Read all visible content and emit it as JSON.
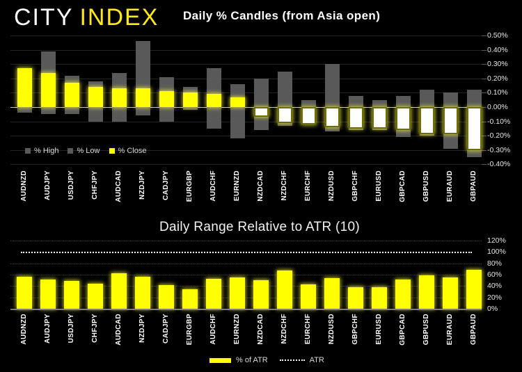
{
  "logo": {
    "text_white": "CITY",
    "text_yellow": "INDEX"
  },
  "colors": {
    "background": "#000000",
    "bar_yellow": "#ffff00",
    "bar_gray": "#595959",
    "negative_close_fill": "#ffffff",
    "logo_yellow": "#ffe81a",
    "axis_text": "#e6e6e6"
  },
  "candle_chart": {
    "title": "Daily % Candles (from Asia open)",
    "legend": [
      {
        "label": "% High",
        "swatch_color": "#595959"
      },
      {
        "label": "% Low",
        "swatch_color": "#595959"
      },
      {
        "label": "% Close",
        "swatch_color": "#ffff00"
      }
    ],
    "ytick_labels": [
      "0.50%",
      "0.40%",
      "0.30%",
      "0.20%",
      "0.10%",
      "0.00%",
      "-0.10%",
      "-0.20%",
      "-0.30%",
      "-0.40%"
    ]
  },
  "atr_chart": {
    "title": "Daily Range Relative to ATR (10)",
    "legend": [
      {
        "label": "% of ATR",
        "swatch_color": "#ffff00",
        "marker": "bar"
      },
      {
        "label": "ATR",
        "marker": "dotted-line"
      }
    ],
    "ytick_labels": [
      "120%",
      "100%",
      "80%",
      "60%",
      "40%",
      "20%",
      "0%"
    ]
  },
  "chart_data": [
    {
      "type": "bar",
      "title": "Daily % Candles (from Asia open)",
      "categories": [
        "AUDNZD",
        "AUDJPY",
        "USDJPY",
        "CHFJPY",
        "AUDCAD",
        "NZDJPY",
        "CADJPY",
        "EURGBP",
        "AUDCHF",
        "EURNZD",
        "NZDCAD",
        "NZDCHF",
        "EURCHF",
        "NZDUSD",
        "GBPCHF",
        "EURUSD",
        "GBPCAD",
        "GBPUSD",
        "EURAUD",
        "GBPAUD"
      ],
      "series": [
        {
          "name": "% High",
          "values": [
            0.27,
            0.39,
            0.22,
            0.18,
            0.24,
            0.46,
            0.21,
            0.14,
            0.27,
            0.16,
            0.2,
            0.25,
            0.05,
            0.3,
            0.08,
            0.05,
            0.08,
            0.12,
            0.1,
            0.12
          ]
        },
        {
          "name": "% Low",
          "values": [
            -0.04,
            -0.05,
            -0.05,
            -0.1,
            -0.1,
            -0.06,
            -0.1,
            -0.02,
            -0.15,
            -0.22,
            -0.16,
            -0.13,
            -0.12,
            -0.17,
            -0.16,
            -0.16,
            -0.21,
            -0.2,
            -0.29,
            -0.35
          ]
        },
        {
          "name": "% Close",
          "values": [
            0.27,
            0.24,
            0.17,
            0.14,
            0.13,
            0.13,
            0.11,
            0.1,
            0.09,
            0.07,
            -0.07,
            -0.11,
            -0.12,
            -0.14,
            -0.15,
            -0.15,
            -0.16,
            -0.19,
            -0.19,
            -0.3
          ]
        }
      ],
      "ylabel": "",
      "xlabel": "",
      "ylim": [
        -0.4,
        0.5
      ],
      "ytick_step": 0.1,
      "ytick_format": "percent_2dp",
      "grid": true,
      "legend_position": "inside-bottom-left",
      "style_note": "range bar spans low-to-high in gray; close bar from zero is yellow when positive, white (invert-if-negative) when negative"
    },
    {
      "type": "bar",
      "title": "Daily Range Relative to ATR (10)",
      "categories": [
        "AUDNZD",
        "AUDJPY",
        "USDJPY",
        "CHFJPY",
        "AUDCAD",
        "NZDJPY",
        "CADJPY",
        "EURGBP",
        "AUDCHF",
        "EURNZD",
        "NZDCAD",
        "NZDCHF",
        "EURCHF",
        "NZDUSD",
        "GBPCHF",
        "EURUSD",
        "GBPCAD",
        "GBPUSD",
        "EURAUD",
        "GBPAUD"
      ],
      "series": [
        {
          "name": "% of ATR",
          "values": [
            56,
            51,
            49,
            44,
            62,
            56,
            42,
            34,
            53,
            55,
            50,
            67,
            43,
            54,
            38,
            38,
            52,
            59,
            55,
            68
          ]
        }
      ],
      "reference_line": {
        "label": "ATR",
        "value": 100,
        "style": "dotted"
      },
      "ylabel": "",
      "xlabel": "",
      "ylim": [
        0,
        120
      ],
      "ytick_step": 20,
      "ytick_format": "percent_0dp",
      "grid": true,
      "legend_position": "bottom-center"
    }
  ]
}
